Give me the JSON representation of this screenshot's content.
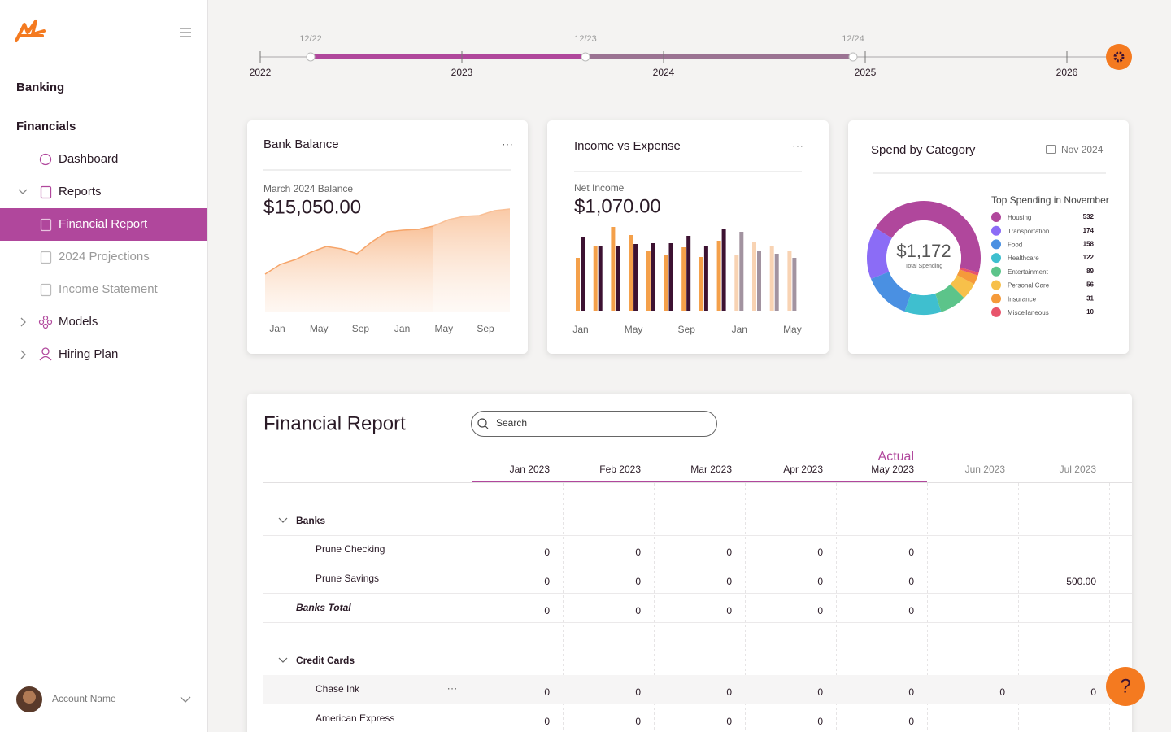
{
  "sidebar": {
    "sections": [
      "Banking",
      "Financials"
    ],
    "items": [
      "Dashboard",
      "Reports",
      "Financial Report",
      "2024 Projections",
      "Income Statement",
      "Models",
      "Hiring Plan"
    ],
    "account": "Account Name"
  },
  "timeline": {
    "years": [
      "2022",
      "2023",
      "2024",
      "2025",
      "2026"
    ],
    "markers": [
      "12/22",
      "12/23",
      "12/24"
    ]
  },
  "bank_balance": {
    "title": "Bank Balance",
    "label": "March 2024 Balance",
    "value": "$15,050.00",
    "chart": {
      "type": "area",
      "values": [
        47,
        59,
        65,
        74,
        81,
        78,
        72,
        87,
        99,
        101,
        102,
        106,
        114,
        118,
        119,
        125,
        127
      ],
      "ylim": [
        0,
        140
      ],
      "x_labels": [
        "Jan",
        "May",
        "Sep",
        "Jan",
        "May",
        "Sep"
      ],
      "color": "#f6a56a",
      "faded_from": 11
    }
  },
  "income_expense": {
    "title": "Income vs Expense",
    "label": "Net Income",
    "value": "$1,070.00",
    "chart": {
      "type": "bar",
      "categories": [
        "Jan",
        null,
        null,
        "May",
        null,
        null,
        "Sep",
        null,
        null,
        "Jan",
        null,
        null,
        "May"
      ],
      "series": [
        {
          "color": "#f4a04a",
          "faded_color": "#f8d3b3",
          "values": [
            65,
            80,
            103,
            93,
            73,
            68,
            78,
            66,
            86,
            68,
            85,
            79,
            73
          ]
        },
        {
          "color": "#3d1232",
          "faded_color": "#a293a0",
          "values": [
            91,
            79,
            79,
            82,
            83,
            83,
            92,
            79,
            101,
            97,
            73,
            70,
            65
          ]
        }
      ],
      "ylim": [
        0,
        110
      ],
      "faded_from": 9
    }
  },
  "spend_by_category": {
    "title": "Spend by Category",
    "date": "Nov 2024",
    "center_value": "$1,172",
    "center_label": "Total Spending",
    "legend_title": "Top Spending in November",
    "chart": {
      "type": "pie",
      "categories": [
        "Housing",
        "Transportation",
        "Food",
        "Healthcare",
        "Entertainment",
        "Personal Care",
        "Insurance",
        "Miscellaneous"
      ],
      "values": [
        532,
        174,
        158,
        122,
        89,
        56,
        31,
        10
      ],
      "colors": [
        "#b0479c",
        "#8b6cf6",
        "#4a90e2",
        "#3fbfcf",
        "#5cc48a",
        "#f7c04a",
        "#f59a3a",
        "#e8546b"
      ]
    }
  },
  "report": {
    "title": "Financial Report",
    "search_placeholder": "Search",
    "actual_label": "Actual",
    "columns": [
      "Jan 2023",
      "Feb 2023",
      "Mar 2023",
      "Apr 2023",
      "May 2023",
      "Jun 2023",
      "Jul 2023"
    ],
    "rows": [
      {
        "label": "Banks",
        "style": "group",
        "cells": null
      },
      {
        "label": "Prune Checking",
        "style": "item",
        "cells": [
          "0",
          "0",
          "0",
          "0",
          "0",
          null,
          null
        ]
      },
      {
        "label": "Prune Savings",
        "style": "item",
        "cells": [
          "0",
          "0",
          "0",
          "0",
          "0",
          null,
          "500.00"
        ]
      },
      {
        "label": "Banks Total",
        "style": "total",
        "cells": [
          "0",
          "0",
          "0",
          "0",
          "0",
          null,
          null
        ]
      },
      {
        "label": "Credit Cards",
        "style": "group",
        "cells": null
      },
      {
        "label": "Chase Ink",
        "style": "item",
        "cells": [
          "0",
          "0",
          "0",
          "0",
          "0",
          "0",
          "0"
        ]
      },
      {
        "label": "American Express",
        "style": "item",
        "cells": [
          "0",
          "0",
          "0",
          "0",
          "0",
          null,
          null
        ]
      }
    ]
  },
  "help": "?"
}
